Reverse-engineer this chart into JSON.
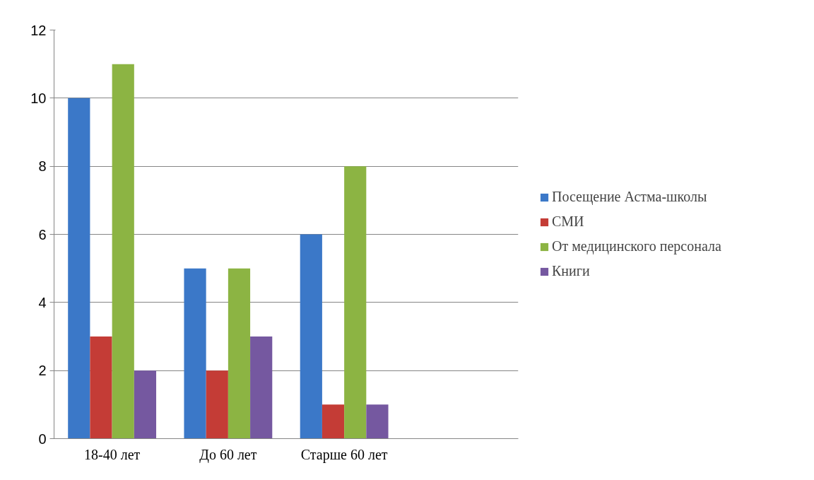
{
  "chart_data": {
    "type": "bar",
    "categories": [
      "18-40 лет",
      "До 60 лет",
      "Старше 60 лет",
      null
    ],
    "series": [
      {
        "name": "Посещение Астма-школы",
        "color": "#3b78c8",
        "values": [
          10,
          5,
          6,
          null
        ]
      },
      {
        "name": "СМИ",
        "color": "#c43c36",
        "values": [
          3,
          2,
          1,
          null
        ]
      },
      {
        "name": "От медицинского персонала",
        "color": "#8cb443",
        "values": [
          11,
          5,
          8,
          null
        ]
      },
      {
        "name": "Книги",
        "color": "#7558a0",
        "values": [
          2,
          3,
          1,
          null
        ]
      }
    ],
    "ylim": [
      0,
      12
    ],
    "yticks": [
      0,
      2,
      4,
      6,
      8,
      10,
      12
    ],
    "grid": "y",
    "legend": "right"
  }
}
